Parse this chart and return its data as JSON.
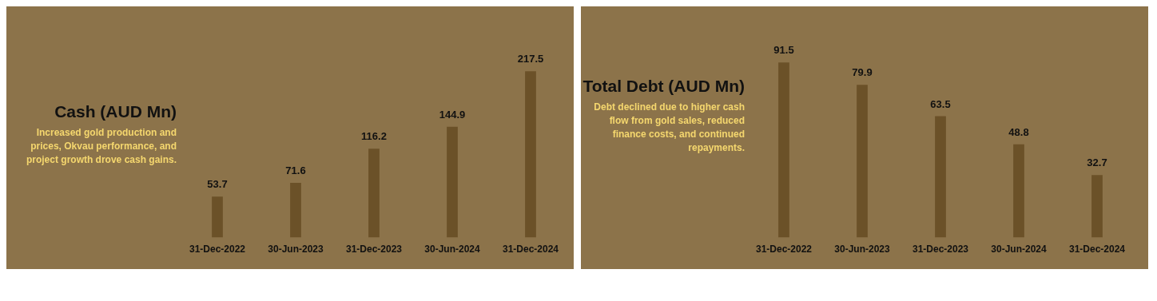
{
  "chart_data": [
    {
      "type": "bar",
      "title": "Cash (AUD Mn)",
      "subtitle": "Increased gold production and prices, Okvau performance, and project growth drove cash gains.",
      "categories": [
        "31-Dec-2022",
        "30-Jun-2023",
        "31-Dec-2023",
        "30-Jun-2024",
        "31-Dec-2024"
      ],
      "values": [
        53.7,
        71.6,
        116.2,
        144.9,
        217.5
      ],
      "color": "#6b5128",
      "data_labels": true,
      "tick_labels": "x"
    },
    {
      "type": "bar",
      "title": "Total Debt (AUD Mn)",
      "subtitle": "Debt declined due to higher cash flow from gold sales, reduced finance costs, and continued repayments.",
      "categories": [
        "31-Dec-2022",
        "30-Jun-2023",
        "31-Dec-2023",
        "30-Jun-2024",
        "31-Dec-2024"
      ],
      "values": [
        91.5,
        79.9,
        63.5,
        48.8,
        32.7
      ],
      "color": "#6b5128",
      "data_labels": true,
      "tick_labels": "x"
    }
  ]
}
